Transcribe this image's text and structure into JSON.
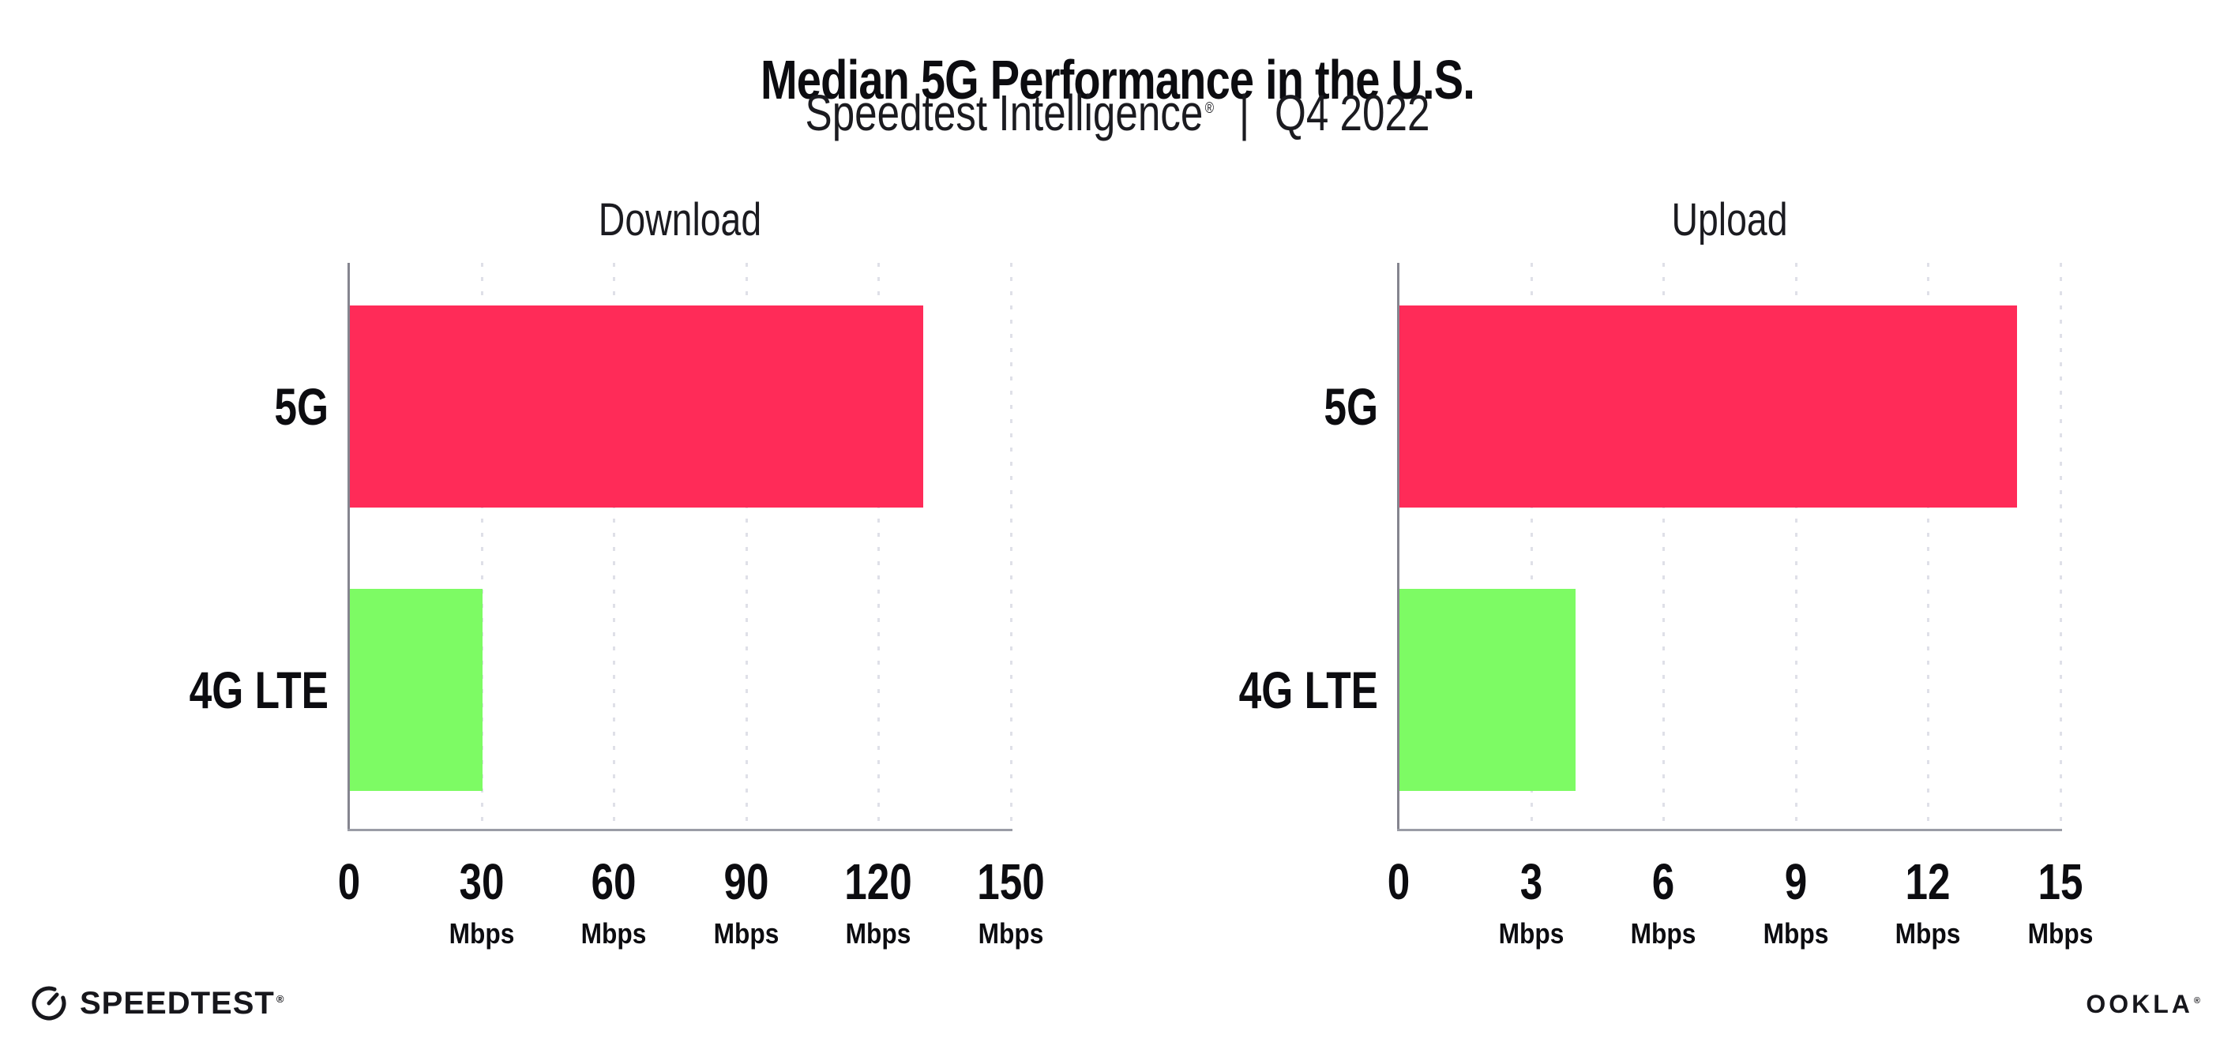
{
  "header": {
    "title": "Median 5G Performance in the U.S.",
    "subtitle": {
      "brand": "Speedtest Intelligence",
      "trademark": "®",
      "separator": "|",
      "period": "Q4 2022"
    }
  },
  "chart_data": [
    {
      "type": "bar",
      "orientation": "horizontal",
      "title": "Download",
      "categories": [
        "5G",
        "4G LTE"
      ],
      "values": [
        130,
        30
      ],
      "unit": "Mbps",
      "xlim": [
        0,
        150
      ],
      "xticks": [
        0,
        30,
        60,
        90,
        120,
        150
      ],
      "tick_unit_label": "Mbps",
      "grid": "vertical-dotted",
      "legend": "none"
    },
    {
      "type": "bar",
      "orientation": "horizontal",
      "title": "Upload",
      "categories": [
        "5G",
        "4G LTE"
      ],
      "values": [
        14,
        4
      ],
      "unit": "Mbps",
      "xlim": [
        0,
        15
      ],
      "xticks": [
        0,
        3,
        6,
        9,
        12,
        15
      ],
      "tick_unit_label": "Mbps",
      "grid": "vertical-dotted",
      "legend": "none"
    }
  ],
  "colors": {
    "bar_5g": "#ff2b58",
    "bar_4g_lte": "#7dfb64",
    "gridline": "#dfe0e8",
    "axis_y": "#85858f",
    "axis_x": "#9a9ca6",
    "text": "#16161c"
  },
  "footer": {
    "speedtest": {
      "label": "SPEEDTEST",
      "trademark": "®"
    },
    "ookla": {
      "label": "OOKLA",
      "trademark": "®"
    }
  }
}
